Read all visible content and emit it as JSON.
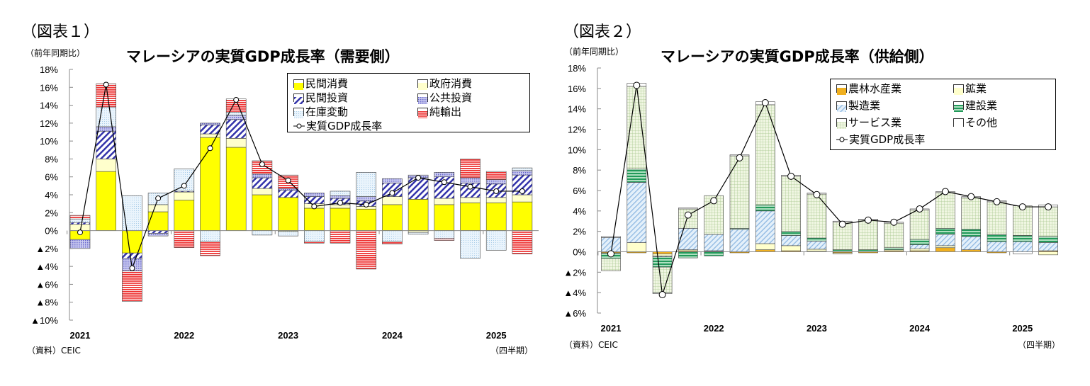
{
  "figures": [
    {
      "label": "（図表１）",
      "unit": "（前年同期比）",
      "source": "（資料）CEIC",
      "period": "（四半期）"
    },
    {
      "label": "（図表２）",
      "unit": "（前年同期比）",
      "source": "（資料）CEIC",
      "period": "（四半期）"
    }
  ],
  "chart_data": [
    {
      "type": "bar",
      "stacked": true,
      "title": "マレーシアの実質GDP成長率（需要側）",
      "ylabel": "（前年同期比）",
      "xlabel": "（四半期）",
      "ylim": [
        -10,
        18
      ],
      "yticks": [
        18,
        16,
        14,
        12,
        10,
        8,
        6,
        4,
        2,
        0,
        -2,
        -4,
        -6,
        -8,
        -10
      ],
      "ytick_labels": [
        "18%",
        "16%",
        "14%",
        "12%",
        "10%",
        "8%",
        "6%",
        "4%",
        "2%",
        "0%",
        "▲2%",
        "▲4%",
        "▲6%",
        "▲8%",
        "▲10%"
      ],
      "categories": [
        "2021Q1",
        "2021Q2",
        "2021Q3",
        "2021Q4",
        "2022Q1",
        "2022Q2",
        "2022Q3",
        "2022Q4",
        "2023Q1",
        "2023Q2",
        "2023Q3",
        "2023Q4",
        "2024Q1",
        "2024Q2",
        "2024Q3",
        "2024Q4",
        "2025Q1",
        "2025Q2"
      ],
      "year_labels": [
        "2021",
        "2022",
        "2023",
        "2024",
        "2025"
      ],
      "legend_position": "top-right",
      "series": [
        {
          "name": "民間消費",
          "color": "#ffff00",
          "pattern": "solid",
          "values": [
            -1.0,
            6.6,
            -2.5,
            2.1,
            3.4,
            10.4,
            9.3,
            4.0,
            3.7,
            2.5,
            2.5,
            2.4,
            2.9,
            3.5,
            2.9,
            3.1,
            3.1,
            3.2
          ]
        },
        {
          "name": "政府消費",
          "color": "#ffffcc",
          "pattern": "solid",
          "values": [
            0.7,
            1.4,
            0.0,
            0.8,
            0.9,
            0.4,
            1.0,
            0.7,
            -0.1,
            0.5,
            0.4,
            0.3,
            0.9,
            -0.2,
            0.7,
            0.6,
            0.6,
            0.8
          ]
        },
        {
          "name": "民間投資",
          "color": "#3333aa",
          "pattern": "diag",
          "values": [
            0.2,
            3.1,
            -0.6,
            -0.3,
            0.1,
            1.0,
            2.1,
            1.2,
            0.8,
            0.8,
            0.7,
            0.6,
            1.5,
            2.4,
            2.4,
            1.6,
            1.5,
            2.2
          ]
        },
        {
          "name": "公共投資",
          "color": "#8888dd",
          "pattern": "dots",
          "values": [
            -1.0,
            0.5,
            -1.4,
            -0.3,
            0.0,
            0.2,
            0.5,
            0.4,
            0.2,
            0.4,
            0.3,
            0.5,
            0.5,
            0.3,
            0.5,
            0.6,
            0.5,
            0.5
          ]
        },
        {
          "name": "在庫変動",
          "color": "#ddeefa",
          "pattern": "fine",
          "values": [
            0.4,
            2.2,
            3.9,
            1.3,
            2.5,
            -1.2,
            0.3,
            -0.5,
            -0.5,
            -1.2,
            0.5,
            2.7,
            -1.2,
            -0.2,
            -0.9,
            -3.1,
            -2.2,
            0.3
          ]
        },
        {
          "name": "純輸出",
          "color": "#ee3333",
          "pattern": "hstripe",
          "values": [
            0.4,
            2.6,
            -3.4,
            0.0,
            -1.9,
            -1.6,
            1.5,
            1.5,
            1.5,
            -0.2,
            -1.4,
            -4.3,
            -0.3,
            0.0,
            -0.2,
            2.1,
            0.9,
            -2.6
          ]
        }
      ],
      "line": {
        "name": "実質GDP成長率",
        "values": [
          -0.2,
          16.3,
          -4.2,
          3.6,
          5.0,
          9.2,
          14.6,
          7.4,
          5.6,
          2.7,
          3.1,
          2.9,
          4.2,
          5.9,
          5.4,
          4.9,
          4.4,
          4.4
        ]
      }
    },
    {
      "type": "bar",
      "stacked": true,
      "title": "マレーシアの実質GDP成長率（供給側）",
      "ylabel": "（前年同期比）",
      "xlabel": "（四半期）",
      "ylim": [
        -6,
        18
      ],
      "yticks": [
        18,
        16,
        14,
        12,
        10,
        8,
        6,
        4,
        2,
        0,
        -2,
        -4,
        -6
      ],
      "ytick_labels": [
        "18%",
        "16%",
        "14%",
        "12%",
        "10%",
        "8%",
        "6%",
        "4%",
        "2%",
        "0%",
        "▲2%",
        "▲4%",
        "▲6%"
      ],
      "categories": [
        "2021Q1",
        "2021Q2",
        "2021Q3",
        "2021Q4",
        "2022Q1",
        "2022Q2",
        "2022Q3",
        "2022Q4",
        "2023Q1",
        "2023Q2",
        "2023Q3",
        "2023Q4",
        "2024Q1",
        "2024Q2",
        "2024Q3",
        "2024Q4",
        "2025Q1",
        "2025Q2"
      ],
      "year_labels": [
        "2021",
        "2022",
        "2023",
        "2024",
        "2025"
      ],
      "legend_position": "top-right",
      "series": [
        {
          "name": "農林水産業",
          "color": "#f0b020",
          "pattern": "solid",
          "values": [
            -0.1,
            -0.1,
            -0.2,
            0.1,
            0.05,
            -0.1,
            0.2,
            0.1,
            0.05,
            -0.1,
            -0.1,
            0.1,
            0.1,
            0.4,
            0.2,
            -0.1,
            0.0,
            0.1
          ]
        },
        {
          "name": "鉱業",
          "color": "#ffffcc",
          "pattern": "solid",
          "values": [
            -0.05,
            0.9,
            -0.2,
            0.1,
            0.05,
            0.0,
            0.6,
            0.5,
            0.2,
            -0.1,
            0.0,
            0.1,
            0.2,
            0.2,
            0.0,
            0.0,
            0.0,
            -0.3
          ]
        },
        {
          "name": "製造業",
          "color": "#a8ccee",
          "pattern": "diag",
          "values": [
            1.4,
            5.9,
            -0.1,
            2.1,
            1.6,
            2.2,
            3.2,
            1.0,
            0.8,
            0.0,
            0.0,
            0.0,
            0.4,
            1.1,
            1.3,
            1.0,
            1.0,
            0.8
          ]
        },
        {
          "name": "建設業",
          "color": "#33aa66",
          "pattern": "hstripe",
          "values": [
            -0.5,
            1.3,
            -1.0,
            -0.6,
            -0.4,
            0.1,
            0.6,
            0.4,
            0.3,
            0.2,
            0.2,
            0.2,
            0.5,
            0.6,
            0.7,
            0.7,
            0.6,
            0.6
          ]
        },
        {
          "name": "サービス業",
          "color": "#e8f2d4",
          "pattern": "grid",
          "values": [
            -1.2,
            8.1,
            -2.5,
            1.9,
            3.8,
            7.1,
            9.8,
            5.4,
            4.3,
            2.7,
            2.9,
            2.4,
            2.9,
            3.5,
            3.1,
            3.2,
            2.9,
            2.9
          ]
        },
        {
          "name": "その他",
          "color": "#ffffff",
          "pattern": "solid",
          "values": [
            0.1,
            0.3,
            -0.1,
            0.1,
            0.0,
            0.1,
            0.3,
            0.1,
            0.1,
            0.1,
            0.1,
            0.1,
            0.1,
            0.1,
            0.1,
            0.1,
            -0.2,
            0.2
          ]
        }
      ],
      "line": {
        "name": "実質GDP成長率",
        "values": [
          -0.2,
          16.3,
          -4.2,
          3.6,
          5.0,
          9.2,
          14.6,
          7.4,
          5.6,
          2.7,
          3.1,
          2.9,
          4.2,
          5.9,
          5.4,
          4.9,
          4.4,
          4.4
        ]
      }
    }
  ]
}
